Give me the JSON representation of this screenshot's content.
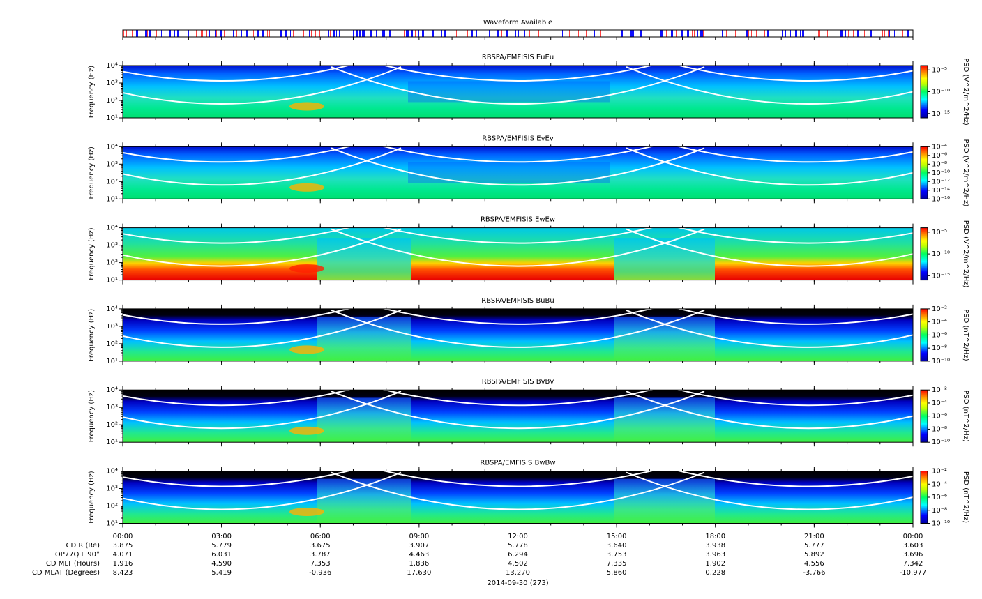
{
  "chart_data": [
    {
      "type": "strip",
      "title": "Waveform Available"
    },
    {
      "type": "spectrogram",
      "style": "electric",
      "title": "RBSPA/EMFISIS  EuEu",
      "ylabel": "Frequency (Hz)",
      "log_scale": true,
      "ylim": [
        10,
        10000
      ],
      "yticks": [
        {
          "value": 10,
          "label": "10¹"
        },
        {
          "value": 100,
          "label": "10²"
        },
        {
          "value": 1000,
          "label": "10³"
        },
        {
          "value": 10000,
          "label": "10⁴"
        }
      ],
      "colorbar": {
        "label": "PSD (V^2/m^2/Hz)",
        "lim": [
          1e-16,
          0.0001
        ],
        "ticks": [
          {
            "value": 1e-05,
            "label": "10⁻⁵"
          },
          {
            "value": 1e-10,
            "label": "10⁻¹⁰"
          },
          {
            "value": 1e-15,
            "label": "10⁻¹⁵"
          }
        ]
      }
    },
    {
      "type": "spectrogram",
      "style": "electric",
      "title": "RBSPA/EMFISIS  EvEv",
      "ylabel": "Frequency (Hz)",
      "log_scale": true,
      "ylim": [
        10,
        10000
      ],
      "yticks": [
        {
          "value": 10,
          "label": "10¹"
        },
        {
          "value": 100,
          "label": "10²"
        },
        {
          "value": 1000,
          "label": "10³"
        },
        {
          "value": 10000,
          "label": "10⁴"
        }
      ],
      "colorbar": {
        "label": "PSD (V^2/m^2/Hz)",
        "lim": [
          1e-16,
          0.0001
        ],
        "ticks": [
          {
            "value": 0.0001,
            "label": "10⁻⁴"
          },
          {
            "value": 1e-06,
            "label": "10⁻⁶"
          },
          {
            "value": 1e-08,
            "label": "10⁻⁸"
          },
          {
            "value": 1e-10,
            "label": "10⁻¹⁰"
          },
          {
            "value": 1e-12,
            "label": "10⁻¹²"
          },
          {
            "value": 1e-14,
            "label": "10⁻¹⁴"
          },
          {
            "value": 1e-16,
            "label": "10⁻¹⁶"
          }
        ]
      }
    },
    {
      "type": "spectrogram",
      "style": "ew",
      "title": "RBSPA/EMFISIS  EwEw",
      "ylabel": "Frequency (Hz)",
      "log_scale": true,
      "ylim": [
        10,
        10000
      ],
      "yticks": [
        {
          "value": 10,
          "label": "10¹"
        },
        {
          "value": 100,
          "label": "10²"
        },
        {
          "value": 1000,
          "label": "10³"
        },
        {
          "value": 10000,
          "label": "10⁴"
        }
      ],
      "colorbar": {
        "label": "PSD (V^2/m^2/Hz)",
        "lim": [
          1e-16,
          0.0001
        ],
        "ticks": [
          {
            "value": 1e-05,
            "label": "10⁻⁵"
          },
          {
            "value": 1e-10,
            "label": "10⁻¹⁰"
          },
          {
            "value": 1e-15,
            "label": "10⁻¹⁵"
          }
        ]
      }
    },
    {
      "type": "spectrogram",
      "style": "magnetic",
      "title": "RBSPA/EMFISIS  BuBu",
      "ylabel": "Frequency (Hz)",
      "log_scale": true,
      "ylim": [
        10,
        10000
      ],
      "yticks": [
        {
          "value": 10,
          "label": "10¹"
        },
        {
          "value": 100,
          "label": "10²"
        },
        {
          "value": 1000,
          "label": "10³"
        },
        {
          "value": 10000,
          "label": "10⁴"
        }
      ],
      "colorbar": {
        "label": "PSD (nT^2/Hz)",
        "lim": [
          1e-10,
          0.01
        ],
        "ticks": [
          {
            "value": 0.01,
            "label": "10⁻²"
          },
          {
            "value": 0.0001,
            "label": "10⁻⁴"
          },
          {
            "value": 1e-06,
            "label": "10⁻⁶"
          },
          {
            "value": 1e-08,
            "label": "10⁻⁸"
          },
          {
            "value": 1e-10,
            "label": "10⁻¹⁰"
          }
        ]
      }
    },
    {
      "type": "spectrogram",
      "style": "magnetic",
      "title": "RBSPA/EMFISIS  BvBv",
      "ylabel": "Frequency (Hz)",
      "log_scale": true,
      "ylim": [
        10,
        10000
      ],
      "yticks": [
        {
          "value": 10,
          "label": "10¹"
        },
        {
          "value": 100,
          "label": "10²"
        },
        {
          "value": 1000,
          "label": "10³"
        },
        {
          "value": 10000,
          "label": "10⁴"
        }
      ],
      "colorbar": {
        "label": "PSD (nT^2/Hz)",
        "lim": [
          1e-10,
          0.01
        ],
        "ticks": [
          {
            "value": 0.01,
            "label": "10⁻²"
          },
          {
            "value": 0.0001,
            "label": "10⁻⁴"
          },
          {
            "value": 1e-06,
            "label": "10⁻⁶"
          },
          {
            "value": 1e-08,
            "label": "10⁻⁸"
          },
          {
            "value": 1e-10,
            "label": "10⁻¹⁰"
          }
        ]
      }
    },
    {
      "type": "spectrogram",
      "style": "magnetic",
      "title": "RBSPA/EMFISIS  BwBw",
      "ylabel": "Frequency (Hz)",
      "log_scale": true,
      "ylim": [
        10,
        10000
      ],
      "yticks": [
        {
          "value": 10,
          "label": "10¹"
        },
        {
          "value": 100,
          "label": "10²"
        },
        {
          "value": 1000,
          "label": "10³"
        },
        {
          "value": 10000,
          "label": "10⁴"
        }
      ],
      "colorbar": {
        "label": "PSD (nT^2/Hz)",
        "lim": [
          1e-10,
          0.01
        ],
        "ticks": [
          {
            "value": 0.01,
            "label": "10⁻²"
          },
          {
            "value": 0.0001,
            "label": "10⁻⁴"
          },
          {
            "value": 1e-06,
            "label": "10⁻⁶"
          },
          {
            "value": 1e-08,
            "label": "10⁻⁸"
          },
          {
            "value": 1e-10,
            "label": "10⁻¹⁰"
          }
        ]
      }
    }
  ],
  "x_axis": {
    "xlim": [
      0,
      24
    ],
    "label": "2014-09-30 (273)",
    "xticks": [
      {
        "value": 0,
        "label": "00:00"
      },
      {
        "value": 3,
        "label": "03:00"
      },
      {
        "value": 6,
        "label": "06:00"
      },
      {
        "value": 9,
        "label": "09:00"
      },
      {
        "value": 12,
        "label": "12:00"
      },
      {
        "value": 15,
        "label": "15:00"
      },
      {
        "value": 18,
        "label": "18:00"
      },
      {
        "value": 21,
        "label": "21:00"
      },
      {
        "value": 24,
        "label": "00:00"
      }
    ]
  },
  "ephemeris": [
    {
      "label": "CD R (Re)",
      "values": [
        "3.875",
        "5.779",
        "3.675",
        "3.907",
        "5.778",
        "3.640",
        "3.938",
        "5.777",
        "3.603"
      ]
    },
    {
      "label": "OP77Q L 90°",
      "values": [
        "4.071",
        "6.031",
        "3.787",
        "4.463",
        "6.294",
        "3.753",
        "3.963",
        "5.892",
        "3.696"
      ]
    },
    {
      "label": "CD MLT (Hours)",
      "values": [
        "1.916",
        "4.590",
        "7.353",
        "1.836",
        "4.502",
        "7.335",
        "1.902",
        "4.556",
        "7.342"
      ]
    },
    {
      "label": "CD MLAT (Degrees)",
      "values": [
        "8.423",
        "5.419",
        "-0.936",
        "17.630",
        "13.270",
        "5.860",
        "0.228",
        "-3.766",
        "-10.977"
      ]
    }
  ]
}
